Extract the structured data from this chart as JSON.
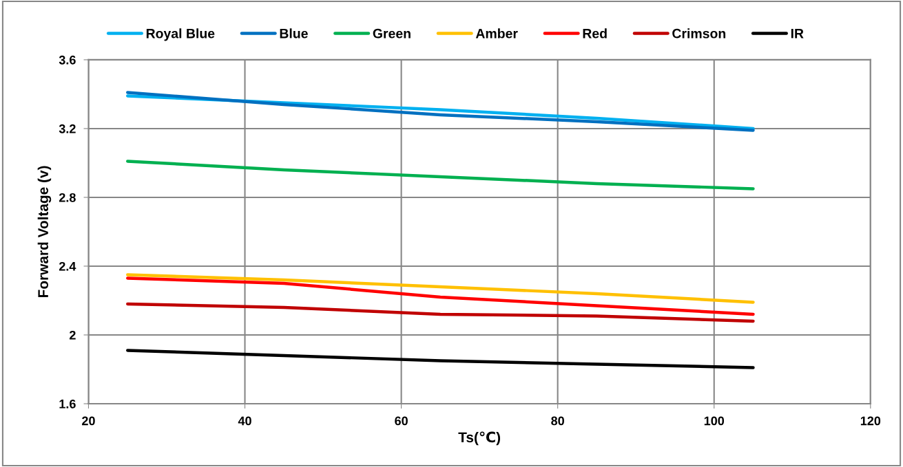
{
  "chart_data": {
    "type": "line",
    "xlabel": "Ts(℃)",
    "ylabel": "Forward Voltage (v)",
    "x": [
      25,
      45,
      65,
      85,
      105
    ],
    "series": [
      {
        "name": "Royal Blue",
        "color": "#00b0f0",
        "values": [
          3.39,
          3.35,
          3.31,
          3.26,
          3.2
        ]
      },
      {
        "name": "Blue",
        "color": "#0070c0",
        "values": [
          3.41,
          3.34,
          3.28,
          3.24,
          3.19
        ]
      },
      {
        "name": "Green",
        "color": "#00b050",
        "values": [
          3.01,
          2.96,
          2.92,
          2.88,
          2.85
        ]
      },
      {
        "name": "Amber",
        "color": "#ffc000",
        "values": [
          2.35,
          2.32,
          2.28,
          2.24,
          2.19
        ]
      },
      {
        "name": "Red",
        "color": "#ff0000",
        "values": [
          2.33,
          2.3,
          2.22,
          2.17,
          2.12
        ]
      },
      {
        "name": "Crimson",
        "color": "#c00000",
        "values": [
          2.18,
          2.16,
          2.12,
          2.11,
          2.08
        ]
      },
      {
        "name": "IR",
        "color": "#000000",
        "values": [
          1.91,
          1.88,
          1.85,
          1.83,
          1.81
        ]
      }
    ],
    "xlim": [
      20,
      120
    ],
    "xticks": [
      20,
      40,
      60,
      80,
      100,
      120
    ],
    "ylim": [
      1.6,
      3.6
    ],
    "yticks": [
      1.6,
      2,
      2.4,
      2.8,
      3.2,
      3.6
    ],
    "grid": true,
    "legend": "top",
    "marker": "none",
    "line_style": "solid"
  }
}
